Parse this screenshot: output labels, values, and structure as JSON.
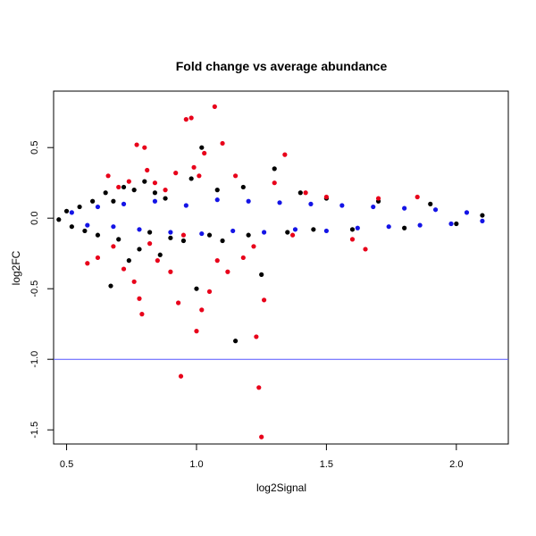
{
  "chart_data": {
    "type": "scatter",
    "title": "Fold change vs average abundance",
    "xlabel": "log2Signal",
    "ylabel": "log2FC",
    "xlim": [
      0.45,
      2.2
    ],
    "ylim": [
      -1.6,
      0.9
    ],
    "x_ticks": [
      0.5,
      1.0,
      1.5,
      2.0
    ],
    "x_tick_labels": [
      "0.5",
      "1.0",
      "1.5",
      "2.0"
    ],
    "y_ticks": [
      -1.5,
      -1.0,
      -0.5,
      0.0,
      0.5
    ],
    "y_tick_labels": [
      "-1.5",
      "-1.0",
      "-0.5",
      "0.0",
      "0.5"
    ],
    "grid": false,
    "hline": {
      "y": -1.0,
      "color": "#5555ff"
    },
    "series": [
      {
        "color": "#000000",
        "points": [
          [
            0.47,
            -0.01
          ],
          [
            0.5,
            0.05
          ],
          [
            0.52,
            -0.06
          ],
          [
            0.55,
            0.08
          ],
          [
            0.57,
            -0.09
          ],
          [
            0.6,
            0.12
          ],
          [
            0.62,
            -0.12
          ],
          [
            0.65,
            0.18
          ],
          [
            0.67,
            -0.48
          ],
          [
            0.68,
            0.12
          ],
          [
            0.7,
            -0.15
          ],
          [
            0.72,
            0.22
          ],
          [
            0.74,
            -0.3
          ],
          [
            0.76,
            0.2
          ],
          [
            0.78,
            -0.22
          ],
          [
            0.8,
            0.26
          ],
          [
            0.82,
            -0.1
          ],
          [
            0.84,
            0.18
          ],
          [
            0.86,
            -0.26
          ],
          [
            0.88,
            0.14
          ],
          [
            0.9,
            -0.14
          ],
          [
            0.95,
            -0.16
          ],
          [
            0.98,
            0.28
          ],
          [
            1.0,
            -0.5
          ],
          [
            1.02,
            0.5
          ],
          [
            1.05,
            -0.12
          ],
          [
            1.08,
            0.2
          ],
          [
            1.1,
            -0.16
          ],
          [
            1.15,
            -0.87
          ],
          [
            1.18,
            0.22
          ],
          [
            1.2,
            -0.12
          ],
          [
            1.25,
            -0.4
          ],
          [
            1.3,
            0.35
          ],
          [
            1.35,
            -0.1
          ],
          [
            1.4,
            0.18
          ],
          [
            1.45,
            -0.08
          ],
          [
            1.5,
            0.14
          ],
          [
            1.6,
            -0.08
          ],
          [
            1.7,
            0.12
          ],
          [
            1.8,
            -0.07
          ],
          [
            1.9,
            0.1
          ],
          [
            2.0,
            -0.04
          ],
          [
            2.1,
            0.02
          ]
        ]
      },
      {
        "color": "#e8001a",
        "points": [
          [
            0.58,
            -0.32
          ],
          [
            0.62,
            -0.28
          ],
          [
            0.66,
            0.3
          ],
          [
            0.68,
            -0.2
          ],
          [
            0.7,
            0.22
          ],
          [
            0.72,
            -0.36
          ],
          [
            0.74,
            0.26
          ],
          [
            0.76,
            -0.45
          ],
          [
            0.77,
            0.52
          ],
          [
            0.78,
            -0.57
          ],
          [
            0.79,
            -0.68
          ],
          [
            0.8,
            0.5
          ],
          [
            0.81,
            0.34
          ],
          [
            0.82,
            -0.18
          ],
          [
            0.84,
            0.25
          ],
          [
            0.85,
            -0.3
          ],
          [
            0.88,
            0.2
          ],
          [
            0.9,
            -0.38
          ],
          [
            0.92,
            0.32
          ],
          [
            0.93,
            -0.6
          ],
          [
            0.94,
            -1.12
          ],
          [
            0.95,
            -0.12
          ],
          [
            0.96,
            0.7
          ],
          [
            0.98,
            0.71
          ],
          [
            0.99,
            0.36
          ],
          [
            1.0,
            -0.8
          ],
          [
            1.01,
            0.3
          ],
          [
            1.02,
            -0.65
          ],
          [
            1.03,
            0.46
          ],
          [
            1.05,
            -0.52
          ],
          [
            1.07,
            0.79
          ],
          [
            1.08,
            -0.3
          ],
          [
            1.1,
            0.53
          ],
          [
            1.12,
            -0.38
          ],
          [
            1.15,
            0.3
          ],
          [
            1.18,
            -0.28
          ],
          [
            1.22,
            -0.2
          ],
          [
            1.23,
            -0.84
          ],
          [
            1.24,
            -1.2
          ],
          [
            1.25,
            -1.55
          ],
          [
            1.26,
            -0.58
          ],
          [
            1.3,
            0.25
          ],
          [
            1.34,
            0.45
          ],
          [
            1.37,
            -0.12
          ],
          [
            1.42,
            0.18
          ],
          [
            1.5,
            0.15
          ],
          [
            1.6,
            -0.15
          ],
          [
            1.65,
            -0.22
          ],
          [
            1.7,
            0.14
          ],
          [
            1.85,
            0.15
          ]
        ]
      },
      {
        "color": "#1414e6",
        "points": [
          [
            0.52,
            0.04
          ],
          [
            0.58,
            -0.05
          ],
          [
            0.62,
            0.08
          ],
          [
            0.68,
            -0.06
          ],
          [
            0.72,
            0.1
          ],
          [
            0.78,
            -0.08
          ],
          [
            0.84,
            0.12
          ],
          [
            0.9,
            -0.1
          ],
          [
            0.96,
            0.09
          ],
          [
            1.02,
            -0.11
          ],
          [
            1.08,
            0.13
          ],
          [
            1.14,
            -0.09
          ],
          [
            1.2,
            0.12
          ],
          [
            1.26,
            -0.1
          ],
          [
            1.32,
            0.11
          ],
          [
            1.38,
            -0.08
          ],
          [
            1.44,
            0.1
          ],
          [
            1.5,
            -0.09
          ],
          [
            1.56,
            0.09
          ],
          [
            1.62,
            -0.07
          ],
          [
            1.68,
            0.08
          ],
          [
            1.74,
            -0.06
          ],
          [
            1.8,
            0.07
          ],
          [
            1.86,
            -0.05
          ],
          [
            1.92,
            0.06
          ],
          [
            1.98,
            -0.04
          ],
          [
            2.04,
            0.04
          ],
          [
            2.1,
            -0.02
          ]
        ]
      }
    ]
  }
}
